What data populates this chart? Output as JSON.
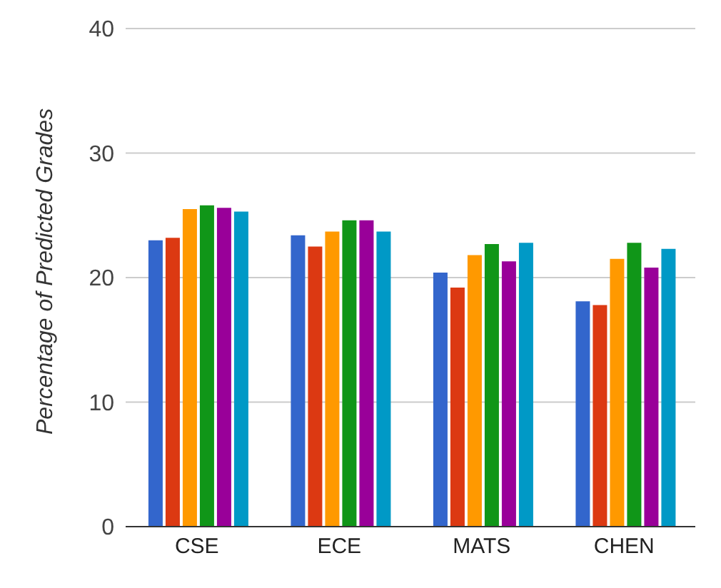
{
  "chart_data": {
    "type": "bar",
    "ylabel": "Percentage of Predicted Grades",
    "categories": [
      "CSE",
      "ECE",
      "MATS",
      "CHEN"
    ],
    "series": [
      {
        "color": "#3366cc",
        "values": [
          23.0,
          23.4,
          20.4,
          18.1
        ]
      },
      {
        "color": "#dc3912",
        "values": [
          23.2,
          22.5,
          19.2,
          17.8
        ]
      },
      {
        "color": "#ff9900",
        "values": [
          25.5,
          23.7,
          21.8,
          21.5
        ]
      },
      {
        "color": "#109618",
        "values": [
          25.8,
          24.6,
          22.7,
          22.8
        ]
      },
      {
        "color": "#990099",
        "values": [
          25.6,
          24.6,
          21.3,
          20.8
        ]
      },
      {
        "color": "#0099c6",
        "values": [
          25.3,
          23.7,
          22.8,
          22.3
        ]
      }
    ],
    "ylim": [
      0,
      40
    ],
    "yticks": [
      0,
      10,
      20,
      30,
      40
    ],
    "grid": "y",
    "legend": false
  }
}
